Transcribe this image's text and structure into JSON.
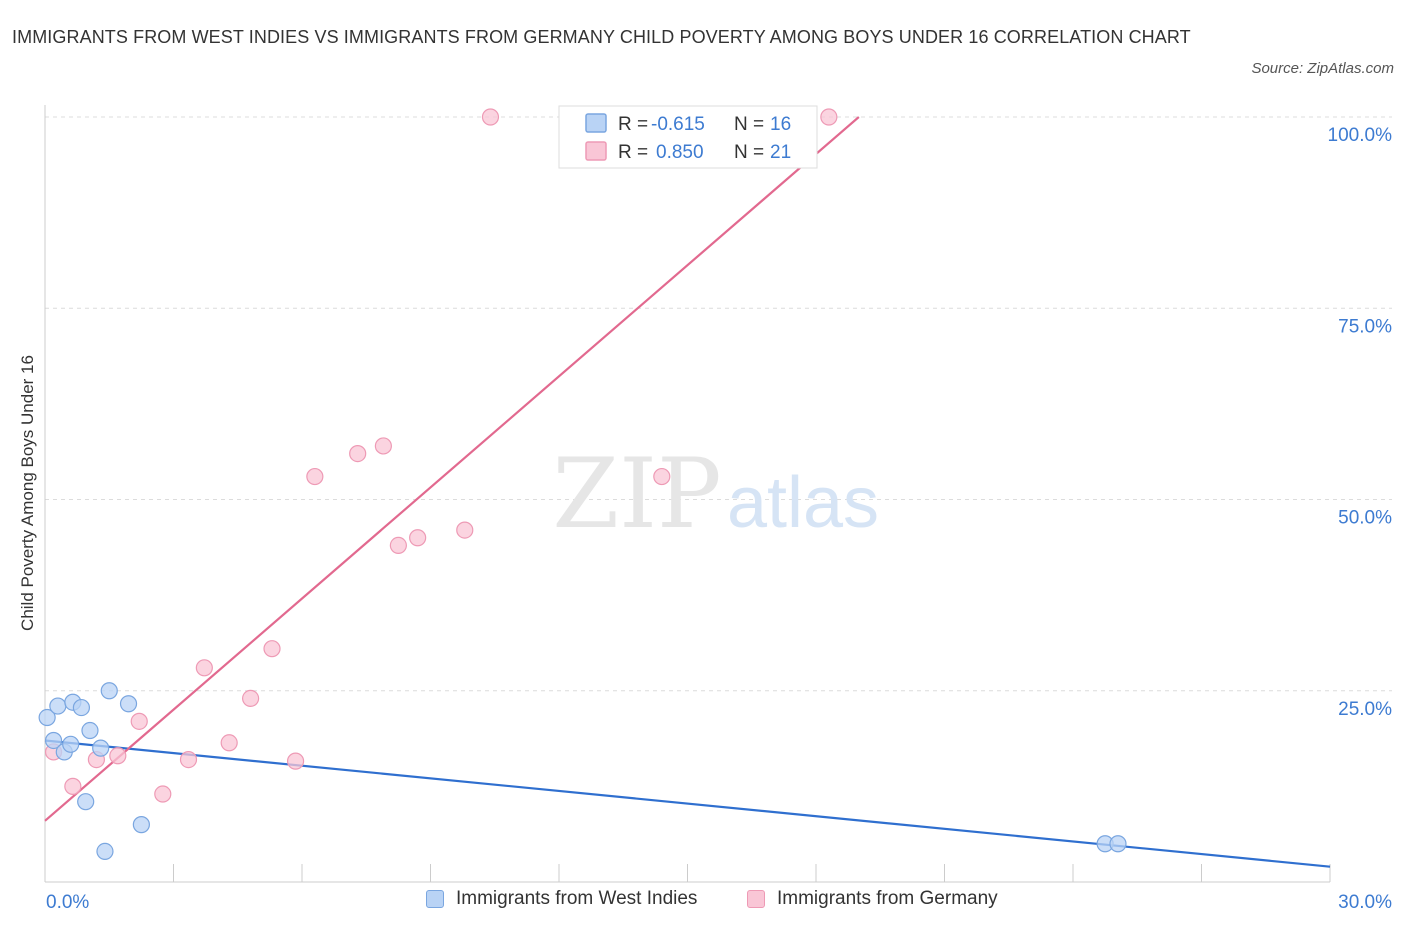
{
  "title": "IMMIGRANTS FROM WEST INDIES VS IMMIGRANTS FROM GERMANY CHILD POVERTY AMONG BOYS UNDER 16 CORRELATION CHART",
  "source": "Source: ZipAtlas.com",
  "watermark": {
    "zip": "ZIP",
    "atlas": "atlas"
  },
  "legend_top": [
    {
      "r_label": "R =",
      "r_value": "-0.615",
      "n_label": "N =",
      "n_value": "16"
    },
    {
      "r_label": "R =",
      "r_value": "0.850",
      "n_label": "N =",
      "n_value": "21"
    }
  ],
  "chart_data": {
    "type": "scatter",
    "ylabel": "Child Poverty Among Boys Under 16",
    "xlim": [
      0,
      30
    ],
    "ylim": [
      0,
      100
    ],
    "x_tick_labels": [
      "0.0%",
      "30.0%"
    ],
    "y_ticks": [
      25,
      50,
      75,
      100
    ],
    "y_tick_labels": [
      "25.0%",
      "50.0%",
      "75.0%",
      "100.0%"
    ],
    "grid": true,
    "colors": {
      "west_indies_fill": "#b9d3f5",
      "west_indies_stroke": "#7aa6e0",
      "west_indies_line": "#2f6fcf",
      "germany_fill": "#f9c6d6",
      "germany_stroke": "#ee9ab5",
      "germany_line": "#e2698f",
      "axis_label": "#3d7bd1"
    },
    "series": [
      {
        "name": "Immigrants from West Indies",
        "points": [
          [
            0.05,
            21.5
          ],
          [
            0.2,
            18.5
          ],
          [
            0.3,
            23.0
          ],
          [
            0.45,
            17.0
          ],
          [
            0.6,
            18.0
          ],
          [
            0.65,
            23.5
          ],
          [
            0.85,
            22.8
          ],
          [
            0.95,
            10.5
          ],
          [
            1.05,
            19.8
          ],
          [
            1.3,
            17.5
          ],
          [
            1.4,
            4.0
          ],
          [
            1.5,
            25.0
          ],
          [
            1.95,
            23.3
          ],
          [
            2.25,
            7.5
          ],
          [
            24.75,
            5.0
          ],
          [
            25.05,
            5.0
          ]
        ],
        "trend": [
          [
            0,
            18.5
          ],
          [
            30,
            2.0
          ]
        ]
      },
      {
        "name": "Immigrants from Germany",
        "points": [
          [
            0.2,
            17.0
          ],
          [
            0.65,
            12.5
          ],
          [
            1.2,
            16.0
          ],
          [
            1.7,
            16.5
          ],
          [
            2.2,
            21.0
          ],
          [
            2.75,
            11.5
          ],
          [
            3.35,
            16.0
          ],
          [
            3.72,
            28.0
          ],
          [
            4.3,
            18.2
          ],
          [
            4.8,
            24.0
          ],
          [
            5.3,
            30.5
          ],
          [
            5.85,
            15.8
          ],
          [
            6.3,
            53.0
          ],
          [
            7.3,
            56.0
          ],
          [
            7.9,
            57.0
          ],
          [
            8.25,
            44.0
          ],
          [
            8.7,
            45.0
          ],
          [
            9.8,
            46.0
          ],
          [
            10.4,
            100.0
          ],
          [
            14.4,
            53.0
          ],
          [
            18.3,
            100.0
          ]
        ],
        "trend": [
          [
            0,
            8.0
          ],
          [
            19,
            100.0
          ]
        ]
      }
    ]
  }
}
